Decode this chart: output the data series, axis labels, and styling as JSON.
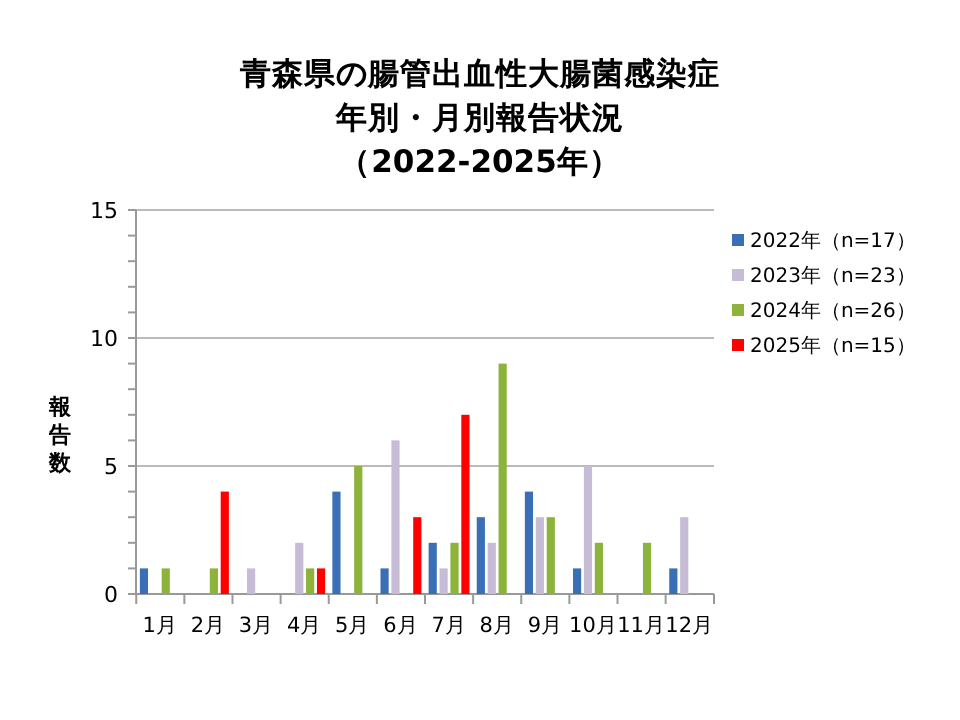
{
  "chart_data": {
    "type": "bar",
    "title": "青森県の腸管出血性大腸菌感染症",
    "subtitle": "年別・月別報告状況",
    "annotations": [
      "（2022-2025年）"
    ],
    "ylabel": "報告数",
    "categories": [
      "1月",
      "2月",
      "3月",
      "4月",
      "5月",
      "6月",
      "7月",
      "8月",
      "9月",
      "10月",
      "11月",
      "12月"
    ],
    "series": [
      {
        "name": "2022年（n=17）",
        "color": "#3a6fb5",
        "values": [
          1,
          0,
          0,
          0,
          4,
          1,
          2,
          3,
          4,
          1,
          0,
          1
        ]
      },
      {
        "name": "2023年（n=23）",
        "color": "#c6bcd6",
        "values": [
          0,
          0,
          1,
          2,
          0,
          6,
          1,
          2,
          3,
          5,
          0,
          3
        ]
      },
      {
        "name": "2024年（n=26）",
        "color": "#8db33a",
        "values": [
          1,
          1,
          0,
          1,
          5,
          0,
          2,
          9,
          3,
          2,
          2,
          0
        ]
      },
      {
        "name": "2025年（n=15）",
        "color": "#ff0000",
        "values": [
          0,
          4,
          0,
          1,
          0,
          3,
          7,
          0,
          0,
          0,
          0,
          0
        ]
      }
    ],
    "ylim": [
      0,
      15
    ],
    "yticks": [
      0,
      {
        "value": 1,
        "label": null
      },
      {
        "value": 2,
        "label": null
      },
      {
        "value": 3,
        "label": null
      },
      {
        "value": 4,
        "label": null
      },
      5,
      {
        "value": 6,
        "label": null
      },
      {
        "value": 7,
        "label": null
      },
      {
        "value": 8,
        "label": null
      },
      {
        "value": 9,
        "label": null
      },
      10,
      {
        "value": 11,
        "label": null
      },
      {
        "value": 12,
        "label": null
      },
      {
        "value": 13,
        "label": null
      },
      {
        "value": 14,
        "label": null
      },
      15
    ],
    "grid": "y",
    "legend": "right"
  }
}
